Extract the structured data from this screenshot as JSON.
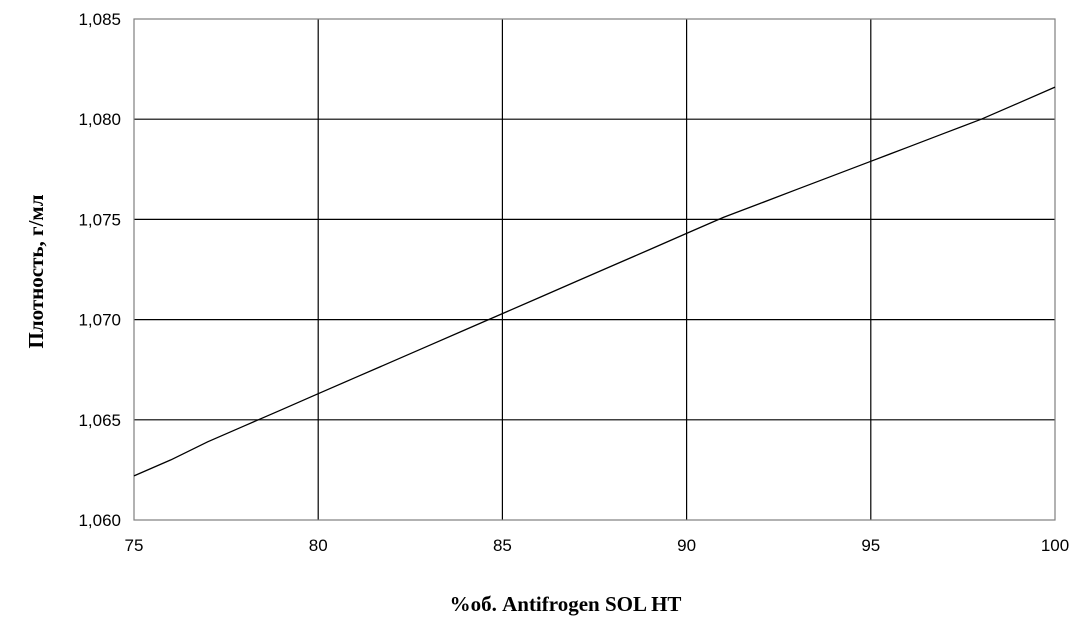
{
  "chart_data": {
    "type": "line",
    "xlabel": "%об. Antifrogen SOL HT",
    "ylabel": "Плотность, г/мл",
    "xlim": [
      75,
      100
    ],
    "ylim": [
      1.06,
      1.085
    ],
    "x_ticks": [
      "75",
      "80",
      "85",
      "90",
      "95",
      "100"
    ],
    "y_ticks": [
      "1,060",
      "1,065",
      "1,070",
      "1,075",
      "1,080",
      "1,085"
    ],
    "grid": true,
    "legend": "none",
    "series": [
      {
        "x": [
          75,
          76,
          77,
          78,
          79,
          80,
          81,
          82,
          83,
          84,
          85,
          86,
          87,
          88,
          89,
          90,
          91,
          92,
          93,
          94,
          95,
          96,
          97,
          98,
          99,
          100
        ],
        "y": [
          1.0622,
          1.063,
          1.0639,
          1.0647,
          1.0655,
          1.0663,
          1.0671,
          1.0679,
          1.0687,
          1.0695,
          1.0703,
          1.0711,
          1.0719,
          1.0727,
          1.0735,
          1.0743,
          1.0751,
          1.0758,
          1.0765,
          1.0772,
          1.0779,
          1.0786,
          1.0793,
          1.08,
          1.0808,
          1.0816
        ]
      }
    ],
    "colors": {
      "line": "#000000",
      "grid": "#000000",
      "frame": "#7f7f7f"
    }
  }
}
